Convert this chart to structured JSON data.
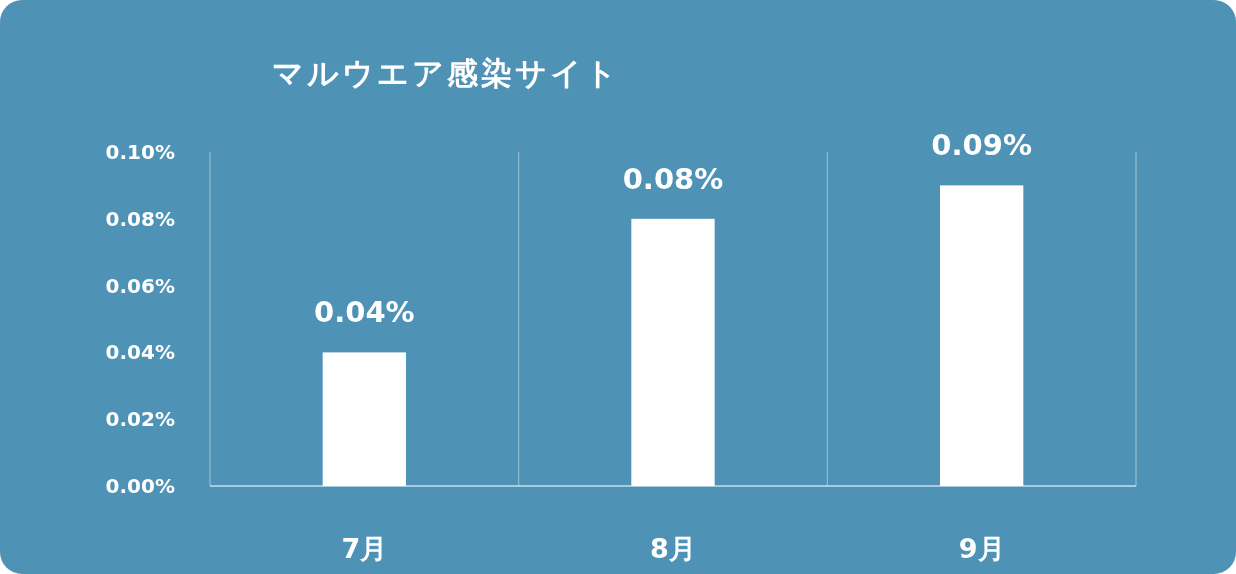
{
  "chart_data": {
    "type": "bar",
    "title": "マルウエア感染サイト",
    "categories": [
      "7月",
      "8月",
      "9月"
    ],
    "values": [
      0.04,
      0.08,
      0.09
    ],
    "color": "#ffffff",
    "ylim": [
      0,
      0.1
    ],
    "yticks": [
      {
        "value": 0,
        "label": "0.00%"
      },
      {
        "value": 0.02,
        "label": "0.02%"
      },
      {
        "value": 0.04,
        "label": "0.04%"
      },
      {
        "value": 0.06,
        "label": "0.06%"
      },
      {
        "value": 0.08,
        "label": "0.08%"
      },
      {
        "value": 0.1,
        "label": "0.10%"
      }
    ],
    "value_labels": [
      "0.04%",
      "0.08%",
      "0.09%"
    ],
    "grid": "x"
  }
}
